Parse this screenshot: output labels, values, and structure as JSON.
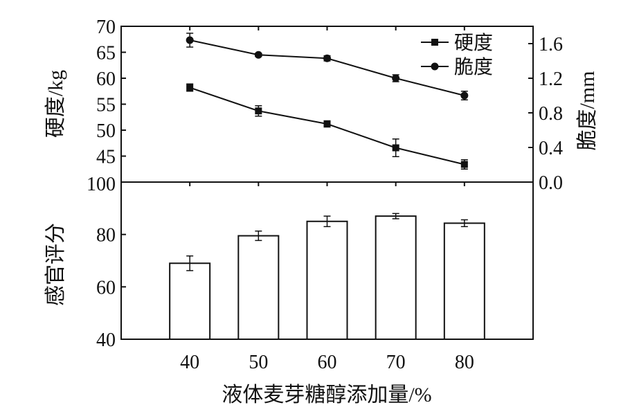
{
  "chart_data": [
    {
      "type": "line",
      "x": [
        40,
        50,
        60,
        70,
        80
      ],
      "xlim": [
        30,
        90
      ],
      "xticks": [
        "40",
        "50",
        "60",
        "70",
        "80"
      ],
      "xlabel": "液体麦芽糖醇添加量/%",
      "y_left": {
        "label": "硬度/kg",
        "lim": [
          40,
          70
        ],
        "ticks": [
          "45",
          "50",
          "55",
          "60",
          "65",
          "70"
        ]
      },
      "y_right": {
        "label": "脆度/mm",
        "lim": [
          0.0,
          1.8
        ],
        "ticks": [
          "0.0",
          "0.4",
          "0.8",
          "1.2",
          "1.6"
        ]
      },
      "series": [
        {
          "name": "硬度",
          "axis": "left",
          "marker": "square",
          "values": [
            58.2,
            53.7,
            51.2,
            46.6,
            43.4
          ],
          "errors": [
            0.7,
            1.0,
            0.6,
            1.7,
            0.9
          ]
        },
        {
          "name": "脆度",
          "axis": "right",
          "marker": "circle",
          "values": [
            1.64,
            1.47,
            1.43,
            1.2,
            1.0
          ],
          "errors": [
            0.08,
            0.02,
            0.03,
            0.04,
            0.05
          ]
        }
      ],
      "legend_position": "top-right"
    },
    {
      "type": "bar",
      "categories": [
        "40",
        "50",
        "60",
        "70",
        "80"
      ],
      "values": [
        69.0,
        79.5,
        85.0,
        87.0,
        84.3
      ],
      "errors": [
        2.8,
        1.8,
        2.0,
        1.0,
        1.3
      ],
      "ylabel": "感官评分",
      "ylim": [
        40,
        100
      ],
      "yticks": [
        "40",
        "60",
        "80",
        "100"
      ],
      "xlabel": "液体麦芽糖醇添加量/%",
      "xticks": [
        "40",
        "50",
        "60",
        "70",
        "80"
      ]
    }
  ],
  "colors": {
    "ink": "#111111",
    "bar_fill": "#ffffff",
    "background": "#ffffff"
  }
}
